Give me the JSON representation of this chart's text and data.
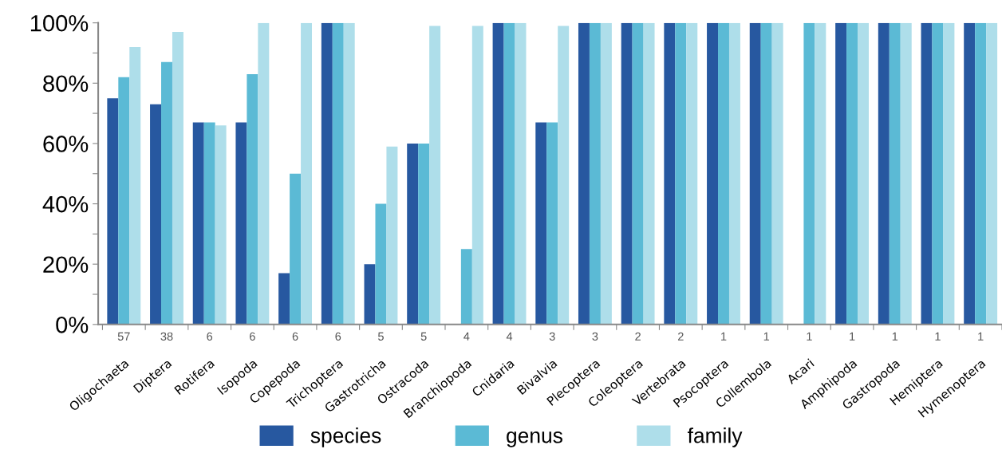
{
  "chart_data": {
    "type": "bar",
    "categories": [
      "Oligochaeta",
      "Diptera",
      "Rotifera",
      "Isopoda",
      "Copepoda",
      "Trichoptera",
      "Gastrotricha",
      "Ostracoda",
      "Branchiopoda",
      "Cnidaria",
      "Bivalvia",
      "Plecoptera",
      "Coleoptera",
      "Vertebrata",
      "Psocoptera",
      "Collembola",
      "Acari",
      "Amphipoda",
      "Gastropoda",
      "Hemiptera",
      "Hymenoptera"
    ],
    "series": [
      {
        "name": "species",
        "color": "#2758a0",
        "values": [
          75,
          73,
          67,
          67,
          17,
          100,
          20,
          60,
          0,
          100,
          67,
          100,
          100,
          100,
          100,
          100,
          0,
          100,
          100,
          100,
          100
        ]
      },
      {
        "name": "genus",
        "color": "#5bbad5",
        "values": [
          82,
          87,
          67,
          83,
          50,
          100,
          40,
          60,
          25,
          100,
          67,
          100,
          100,
          100,
          100,
          100,
          100,
          100,
          100,
          100,
          100
        ]
      },
      {
        "name": "family",
        "color": "#aedeea",
        "values": [
          92,
          97,
          66,
          100,
          100,
          100,
          59,
          99,
          99,
          100,
          99,
          100,
          100,
          100,
          100,
          100,
          100,
          100,
          100,
          100,
          100
        ]
      }
    ],
    "ylim": [
      0,
      100
    ],
    "yticks": [
      {
        "value": 0,
        "label": "0%"
      },
      {
        "value": 10,
        "label": null
      },
      {
        "value": 20,
        "label": "20%"
      },
      {
        "value": 30,
        "label": null
      },
      {
        "value": 40,
        "label": "40%"
      },
      {
        "value": 50,
        "label": null
      },
      {
        "value": 60,
        "label": "60%"
      },
      {
        "value": 70,
        "label": null
      },
      {
        "value": 80,
        "label": "80%"
      },
      {
        "value": 90,
        "label": null
      },
      {
        "value": 100,
        "label": "100%"
      }
    ],
    "annotations": [
      "57",
      "38",
      "6",
      "6",
      "6",
      "6",
      "5",
      "5",
      "4",
      "4",
      "3",
      "3",
      "2",
      "2",
      "1",
      "1",
      "1",
      "1",
      "1",
      "1",
      "1"
    ],
    "grid": false,
    "legend": "bottom"
  }
}
